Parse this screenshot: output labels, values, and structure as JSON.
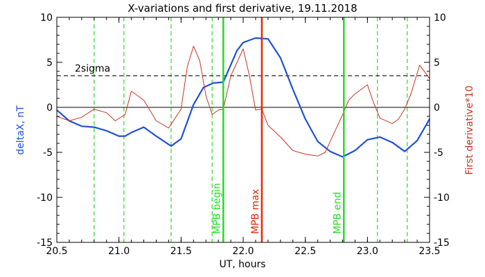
{
  "chart_data": {
    "type": "line",
    "title": "X-variations and first derivative, 19.11.2018",
    "xlabel": "UT, hours",
    "ylabel_left": "deltaX, nT",
    "ylabel_right": "First derivative*10",
    "xlim": [
      20.5,
      23.5
    ],
    "ylim": [
      -15,
      10
    ],
    "x_ticks": [
      20.5,
      21.0,
      21.5,
      22.0,
      22.5,
      23.0,
      23.5
    ],
    "x_tick_labels": [
      "20.5",
      "21.0",
      "21.5",
      "22.0",
      "22.5",
      "23.0",
      "23.5"
    ],
    "y_ticks": [
      -15,
      -10,
      -5,
      0,
      5,
      10
    ],
    "y_tick_labels": [
      "-15",
      "-10",
      "-5",
      "0",
      "5",
      "10"
    ],
    "right_y_tick_labels": [
      "-15",
      "-10",
      "-5",
      "0",
      "5",
      "10"
    ],
    "colors": {
      "deltaX": "#1f4fd6",
      "derivative": "#c8341e",
      "green": "#22dd22",
      "red": "#ee2200",
      "left_label": "#1f4fd6",
      "right_label": "#c8341e"
    },
    "sigma_line": {
      "y": 3.5,
      "label": "2sigma"
    },
    "zero_line": {
      "y": 0
    },
    "dashed_green_x": [
      20.8,
      21.04,
      21.42,
      21.75,
      23.08,
      23.32
    ],
    "markers": [
      {
        "x": 21.84,
        "label": "MPB begin",
        "color": "green"
      },
      {
        "x": 22.15,
        "label": "MPB max",
        "color": "red"
      },
      {
        "x": 22.81,
        "label": "MPB end",
        "color": "green"
      }
    ],
    "series": [
      {
        "key": "deltaX",
        "x": [
          20.5,
          20.6,
          20.7,
          20.8,
          20.9,
          21.0,
          21.05,
          21.1,
          21.2,
          21.3,
          21.42,
          21.5,
          21.6,
          21.68,
          21.76,
          21.84,
          21.95,
          22.0,
          22.1,
          22.2,
          22.3,
          22.4,
          22.5,
          22.6,
          22.7,
          22.8,
          22.9,
          23.0,
          23.1,
          23.2,
          23.3,
          23.4,
          23.5
        ],
        "y": [
          -0.3,
          -1.5,
          -2.1,
          -2.2,
          -2.6,
          -3.2,
          -3.2,
          -2.8,
          -2.2,
          -3.2,
          -4.3,
          -3.5,
          0.3,
          2.2,
          2.7,
          2.8,
          6.3,
          7.2,
          7.7,
          7.6,
          5.5,
          2.0,
          -1.3,
          -3.8,
          -4.9,
          -5.5,
          -4.8,
          -3.6,
          -3.3,
          -3.9,
          -4.9,
          -3.7,
          -1.3
        ]
      },
      {
        "key": "derivative",
        "x": [
          20.5,
          20.6,
          20.7,
          20.8,
          20.9,
          20.97,
          21.05,
          21.1,
          21.2,
          21.3,
          21.4,
          21.5,
          21.55,
          21.6,
          21.65,
          21.7,
          21.75,
          21.8,
          21.84,
          21.9,
          22.0,
          22.05,
          22.1,
          22.15,
          22.2,
          22.3,
          22.4,
          22.5,
          22.6,
          22.66,
          22.7,
          22.8,
          22.85,
          22.9,
          23.0,
          23.05,
          23.1,
          23.2,
          23.25,
          23.3,
          23.35,
          23.42,
          23.5
        ],
        "y": [
          -1.0,
          -1.5,
          -1.1,
          -0.2,
          -0.6,
          -1.5,
          -0.8,
          1.8,
          0.8,
          -1.5,
          -2.3,
          -0.2,
          4.5,
          6.8,
          5.2,
          1.3,
          -0.8,
          -0.3,
          -0.2,
          3.5,
          6.5,
          3.5,
          -0.3,
          -0.2,
          -2.0,
          -3.3,
          -4.8,
          -5.2,
          -5.4,
          -5.0,
          -3.8,
          -0.8,
          0.8,
          1.5,
          2.5,
          0.5,
          -1.2,
          -1.8,
          -1.3,
          -0.2,
          1.5,
          4.7,
          3.2
        ]
      }
    ]
  }
}
